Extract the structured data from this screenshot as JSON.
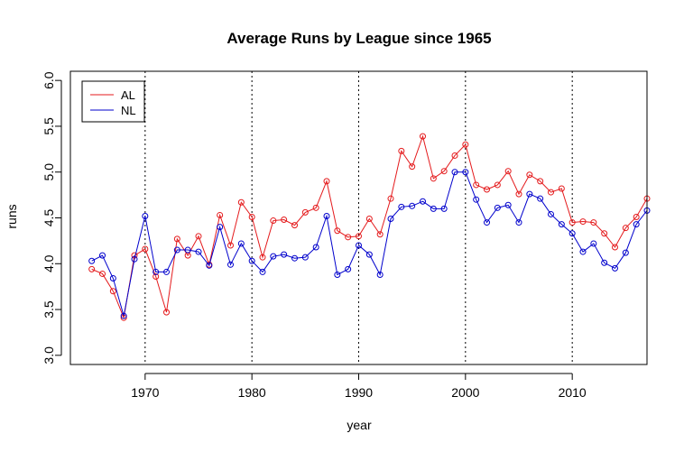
{
  "chart_data": {
    "type": "line",
    "title": "Average Runs by League since 1965",
    "xlabel": "year",
    "ylabel": "runs",
    "xlim": [
      1963,
      2017
    ],
    "ylim": [
      2.9,
      6.1
    ],
    "x_ticks": [
      1970,
      1980,
      1990,
      2000,
      2010
    ],
    "y_ticks": [
      3.0,
      3.5,
      4.0,
      4.5,
      5.0,
      5.5,
      6.0
    ],
    "vlines": [
      1970,
      1980,
      1990,
      2000,
      2010
    ],
    "legend_position": "top-left",
    "x": [
      1965,
      1966,
      1967,
      1968,
      1969,
      1970,
      1971,
      1972,
      1973,
      1974,
      1975,
      1976,
      1977,
      1978,
      1979,
      1980,
      1981,
      1982,
      1983,
      1984,
      1985,
      1986,
      1987,
      1988,
      1989,
      1990,
      1991,
      1992,
      1993,
      1994,
      1995,
      1996,
      1997,
      1998,
      1999,
      2000,
      2001,
      2002,
      2003,
      2004,
      2005,
      2006,
      2007,
      2008,
      2009,
      2010,
      2011,
      2012,
      2013,
      2014,
      2015,
      2016,
      2017
    ],
    "series": [
      {
        "name": "AL",
        "color": "#e41a1c",
        "values": [
          3.94,
          3.89,
          3.7,
          3.41,
          4.09,
          4.16,
          3.86,
          3.47,
          4.27,
          4.09,
          4.3,
          3.99,
          4.53,
          4.2,
          4.67,
          4.51,
          4.07,
          4.47,
          4.48,
          4.42,
          4.56,
          4.61,
          4.9,
          4.36,
          4.29,
          4.3,
          4.49,
          4.32,
          4.71,
          5.23,
          5.06,
          5.39,
          4.93,
          5.01,
          5.18,
          5.3,
          4.86,
          4.81,
          4.86,
          5.01,
          4.76,
          4.97,
          4.9,
          4.78,
          4.82,
          4.45,
          4.46,
          4.45,
          4.33,
          4.18,
          4.39,
          4.51,
          4.71
        ]
      },
      {
        "name": "NL",
        "color": "#0000cc",
        "values": [
          4.03,
          4.09,
          3.84,
          3.43,
          4.05,
          4.52,
          3.91,
          3.91,
          4.15,
          4.15,
          4.13,
          3.98,
          4.4,
          3.99,
          4.22,
          4.03,
          3.91,
          4.08,
          4.1,
          4.06,
          4.07,
          4.18,
          4.52,
          3.88,
          3.94,
          4.2,
          4.1,
          3.88,
          4.49,
          4.62,
          4.63,
          4.68,
          4.6,
          4.6,
          5.0,
          5.0,
          4.7,
          4.45,
          4.61,
          4.64,
          4.45,
          4.76,
          4.71,
          4.54,
          4.43,
          4.33,
          4.13,
          4.22,
          4.01,
          3.95,
          4.12,
          4.43,
          4.58
        ]
      }
    ]
  }
}
